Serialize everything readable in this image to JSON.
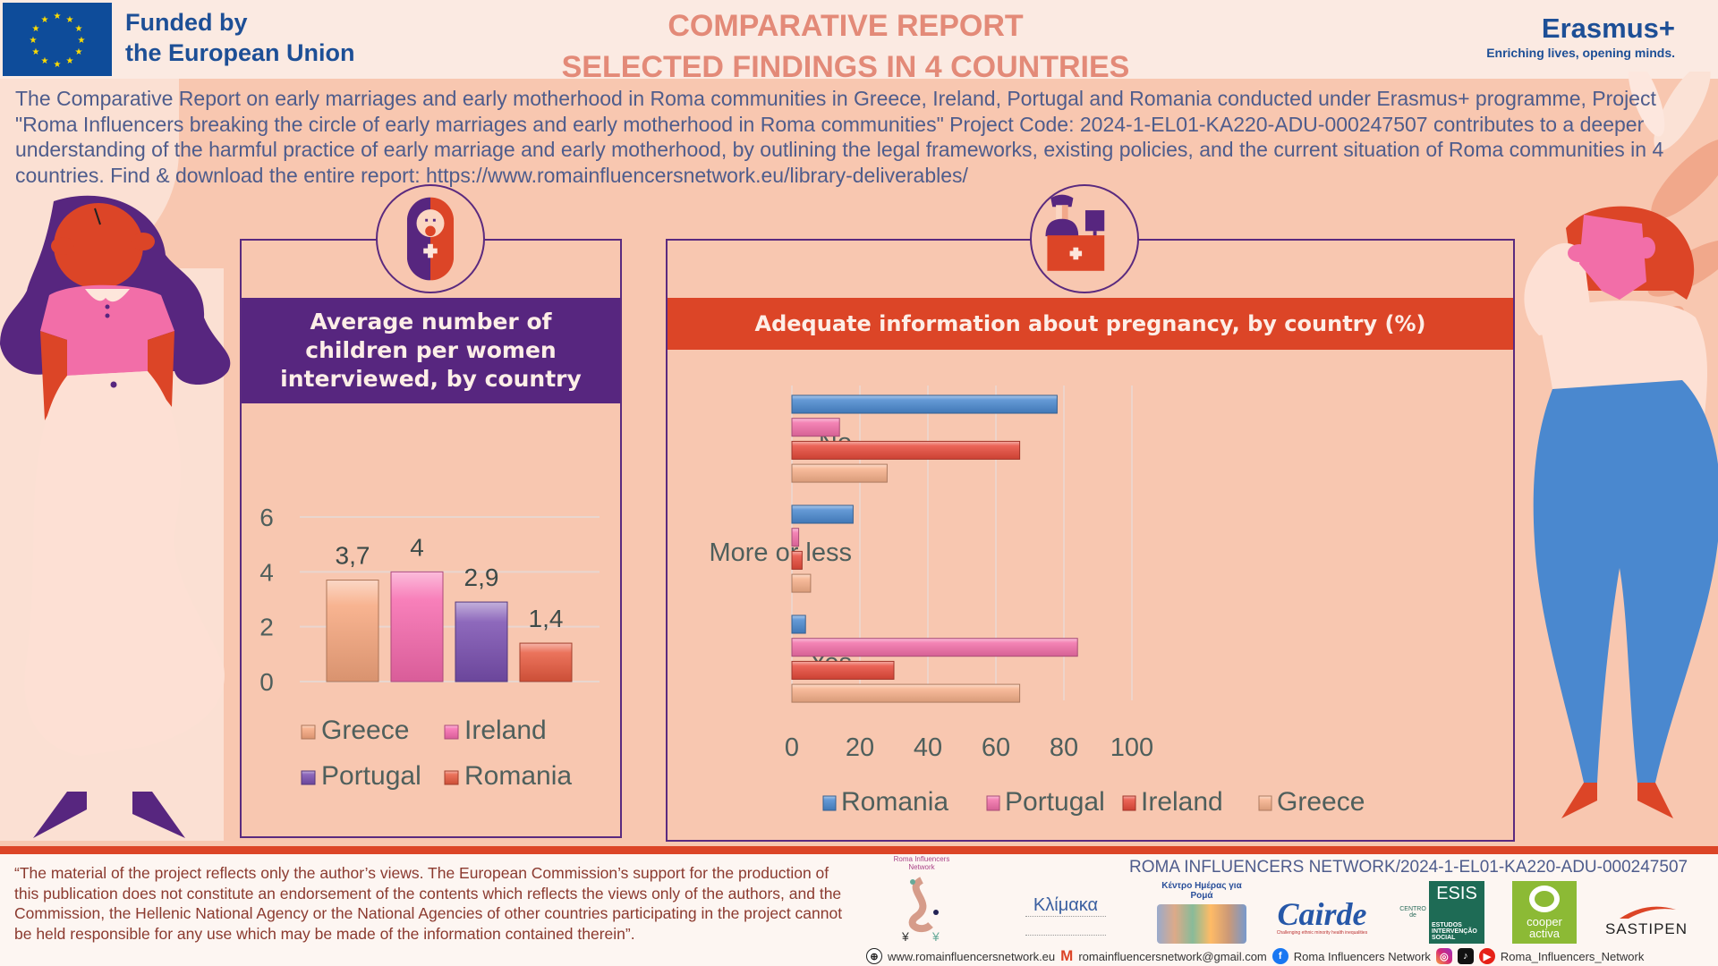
{
  "header": {
    "funder_line1": "Funded by",
    "funder_line2": "the European Union",
    "title_line1": "COMPARATIVE REPORT",
    "title_line2": "SELECTED FINDINGS IN 4 COUNTRIES",
    "erasmus_name": "Erasmus+",
    "erasmus_tagline": "Enriching lives, opening minds."
  },
  "intro": "The Comparative Report on early marriages and early motherhood in Roma communities in Greece, Ireland, Portugal and Romania conducted under Erasmus+ programme, Project \"Roma Influencers breaking the circle of early marriages and early motherhood in Roma communities\" Project Code: 2024-1-EL01-KA220-ADU-000247507 contributes to a deeper understanding of the harmful practice of early marriage and early motherhood, by outlining the legal frameworks, existing policies, and the current situation of Roma communities in 4 countries. Find & download the entire report: https://www.romainfluencersnetwork.eu/library-deliverables/",
  "colors": {
    "purple": "#57267f",
    "red": "#dc4527",
    "background": "#f8c7b0",
    "blue": "#4a88cf",
    "pink": "#f26ea8"
  },
  "chart_data": [
    {
      "type": "bar",
      "title": "Average number of children per women interviewed, by country",
      "categories": [
        "Greece",
        "Ireland",
        "Portugal",
        "Romania"
      ],
      "values": [
        3.7,
        4,
        2.9,
        1.4
      ],
      "data_labels": [
        "3,7",
        "4",
        "2,9",
        "1,4"
      ],
      "colors": [
        "#f7a77e",
        "#f76aae",
        "#7a4fb0",
        "#e85a3f"
      ],
      "ylim": [
        0,
        6
      ],
      "yticks": [
        "0",
        "2",
        "4",
        "6"
      ],
      "xlabel": "",
      "ylabel": "",
      "grid": true,
      "legend": [
        "Greece",
        "Ireland",
        "Portugal",
        "Romania"
      ],
      "legend_position": "bottom"
    },
    {
      "type": "bar",
      "orientation": "horizontal",
      "title": "Adequate information about pregnancy, by country (%)",
      "categories": [
        "No",
        "More or less",
        "Yes"
      ],
      "series": [
        {
          "name": "Romania",
          "color": "#4a88cf",
          "values": [
            78,
            18,
            4
          ]
        },
        {
          "name": "Portugal",
          "color": "#f26ea8",
          "values": [
            14,
            2,
            84
          ]
        },
        {
          "name": "Ireland",
          "color": "#e84a3a",
          "values": [
            67,
            3,
            30
          ]
        },
        {
          "name": "Greece",
          "color": "#f7b08a",
          "values": [
            28,
            5.5,
            67
          ]
        }
      ],
      "xlim": [
        0,
        100
      ],
      "xticks": [
        "0",
        "20",
        "40",
        "60",
        "80",
        "100"
      ],
      "xlabel": "",
      "ylabel": "",
      "grid": true,
      "legend_position": "bottom"
    }
  ],
  "footer": {
    "disclaimer": "“The material of the project reflects only the author’s views. The European Commission’s support for the production of this publication does not constitute an endorsement of the contents which reflects the views only of the authors, and the Commission, the Hellenic National Agency or the National Agencies of other countries participating in the project cannot be held responsible for any use which may be made of the information contained therein”.",
    "project_code": "ROMA INFLUENCERS NETWORK/2024-1-EL01-KA220-ADU-000247507",
    "logos": {
      "roma_network": "Roma Influencers Network",
      "klimaka": "Κλίμακα",
      "kentro": "Κέντρο Ημέρας για Ρομά",
      "cairde": "Cairde",
      "cairde_tag": "Challenging ethnic minority health inequalities",
      "esis_short": "ESIS",
      "esis_full": "ESTUDOS INTERVENÇÃO SOCIAL",
      "esis_prefix": "CENTRO de",
      "cooper": "cooper activa",
      "sastipen": "SASTIPEN"
    },
    "contacts": {
      "website": "www.romainfluencersnetwork.eu",
      "email": "romainfluencersnetwork@gmail.com",
      "facebook": "Roma Influencers Network",
      "social_handle": "Roma_Influencers_Network"
    }
  }
}
